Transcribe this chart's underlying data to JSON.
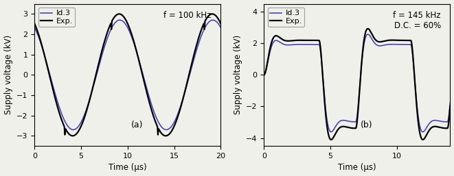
{
  "subplot_a": {
    "title_text": "f = 100 kHz",
    "xlabel": "Time (μs)",
    "ylabel": "Supply voltage (kV)",
    "xlim": [
      0,
      20
    ],
    "ylim": [
      -3.5,
      3.5
    ],
    "yticks": [
      -3,
      -2,
      -1,
      0,
      1,
      2,
      3
    ],
    "xticks": [
      0,
      5,
      10,
      15,
      20
    ],
    "label_a": "(a)",
    "freq_khz": 100,
    "amplitude": 3.0
  },
  "subplot_b": {
    "title_text": "f = 145 kHz\nD.C. = 60%",
    "xlabel": "Time (μs)",
    "ylabel": "Supply voltage (kV)",
    "xlim": [
      0,
      14
    ],
    "ylim": [
      -4.5,
      4.5
    ],
    "yticks": [
      -4,
      -2,
      0,
      2,
      4
    ],
    "xticks": [
      0,
      5,
      10
    ],
    "label_b": "(b)",
    "freq_khz": 145,
    "dc": 0.6
  },
  "exp_color": "#000000",
  "id3_color": "#4444bb",
  "exp_lw": 1.6,
  "id3_lw": 1.2,
  "legend_exp": "Exp.",
  "legend_id3": "Id.3",
  "background_color": "#f0f0ea"
}
